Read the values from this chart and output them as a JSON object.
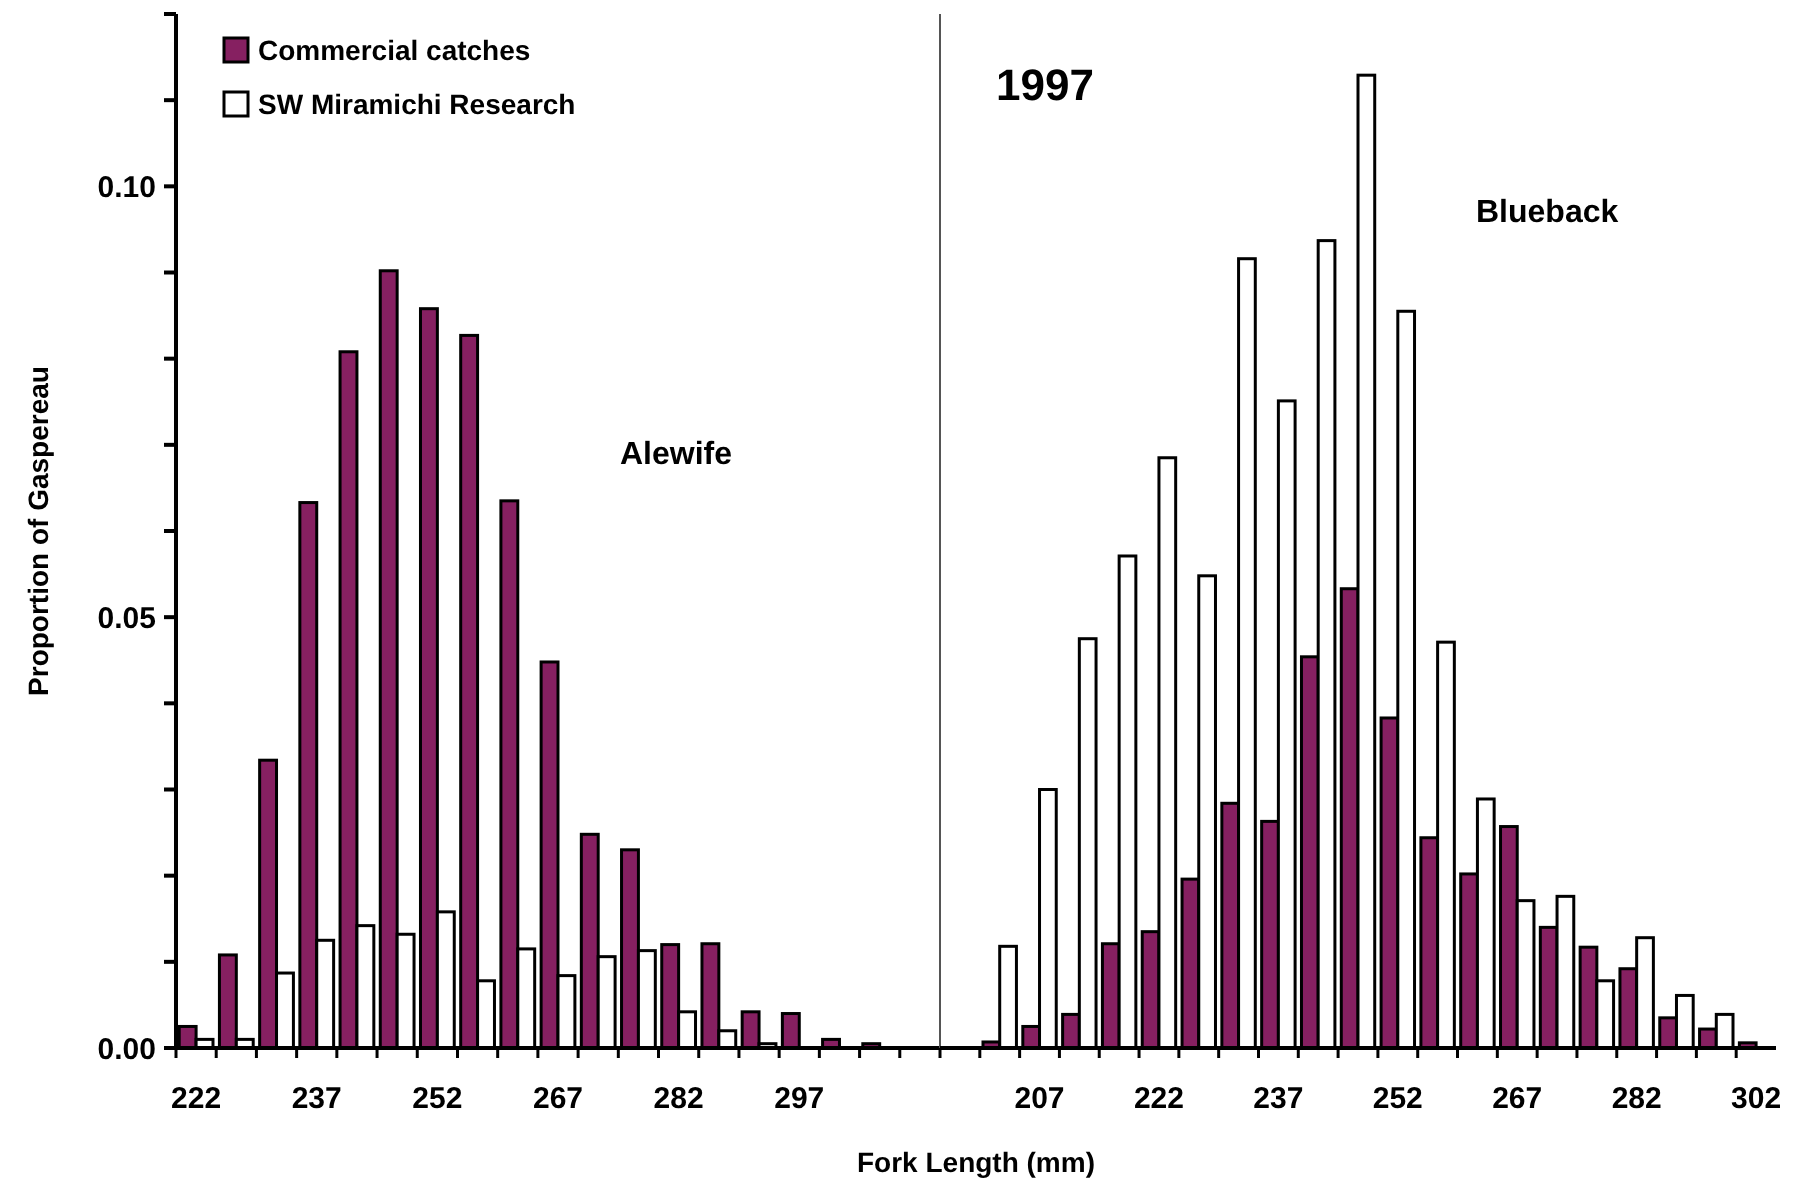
{
  "chart_data": [
    {
      "type": "bar",
      "ylabel": "Proportion of Gaspereau",
      "xlabel": "Fork Length (mm)",
      "legend": "top left",
      "grid": false,
      "categories": [
        "222",
        null,
        null,
        "237",
        null,
        null,
        "252",
        null,
        null,
        "267",
        null,
        null,
        "282",
        null,
        null,
        "297",
        null,
        null,
        null
      ],
      "ylim": [
        0,
        0.12
      ],
      "yticks": [
        {
          "value": 0,
          "label": "0.00"
        },
        {
          "value": 0.01,
          "label": null
        },
        {
          "value": 0.02,
          "label": null
        },
        {
          "value": 0.03,
          "label": null
        },
        {
          "value": 0.04,
          "label": null
        },
        {
          "value": 0.05,
          "label": "0.05"
        },
        {
          "value": 0.06,
          "label": null
        },
        {
          "value": 0.07,
          "label": null
        },
        {
          "value": 0.08,
          "label": null
        },
        {
          "value": 0.09,
          "label": null
        },
        {
          "value": 0.1,
          "label": "0.10"
        },
        {
          "value": 0.11,
          "label": null
        },
        {
          "value": 0.12,
          "label": null
        }
      ],
      "annotations": [
        "Alewife"
      ],
      "series": [
        {
          "name": "Commercial catches",
          "color": "#862061",
          "values": [
            0.0025,
            0.0108,
            0.0334,
            0.0633,
            0.0808,
            0.0902,
            0.0858,
            0.0827,
            0.0635,
            0.0448,
            0.0248,
            0.023,
            0.012,
            0.0121,
            0.0042,
            0.004,
            0.001,
            0.0005,
            0
          ]
        },
        {
          "name": "SW Miramichi Research",
          "color": "#ffffff",
          "values": [
            0.001,
            0.001,
            0.0087,
            0.0125,
            0.0142,
            0.0132,
            0.0158,
            0.0078,
            0.0115,
            0.0084,
            0.0106,
            0.0113,
            0.0042,
            0.002,
            0.0005,
            0,
            0,
            0,
            0
          ]
        }
      ]
    },
    {
      "type": "bar",
      "title": "1997",
      "tick_labels": "x",
      "grid": false,
      "categories": [
        null,
        null,
        "207",
        null,
        null,
        "222",
        null,
        null,
        "237",
        null,
        null,
        "252",
        null,
        null,
        "267",
        null,
        null,
        "282",
        null,
        null,
        "302"
      ],
      "ylim": [
        0,
        0.12
      ],
      "annotations": [
        "Blueback"
      ],
      "series": [
        {
          "color": "#862061",
          "values": [
            0,
            0.0007,
            0.0025,
            0.0039,
            0.0121,
            0.0135,
            0.0196,
            0.0284,
            0.0263,
            0.0454,
            0.0533,
            0.0383,
            0.0244,
            0.0202,
            0.0257,
            0.014,
            0.0117,
            0.0092,
            0.0035,
            0.0022,
            0.0006
          ]
        },
        {
          "color": "#ffffff",
          "values": [
            0,
            0.0118,
            0.03,
            0.0475,
            0.0571,
            0.0685,
            0.0548,
            0.0916,
            0.0751,
            0.0937,
            0.1129,
            0.0855,
            0.0471,
            0.0289,
            0.0171,
            0.0176,
            0.0078,
            0.0128,
            0.0061,
            0.0039,
            0
          ]
        }
      ]
    }
  ]
}
